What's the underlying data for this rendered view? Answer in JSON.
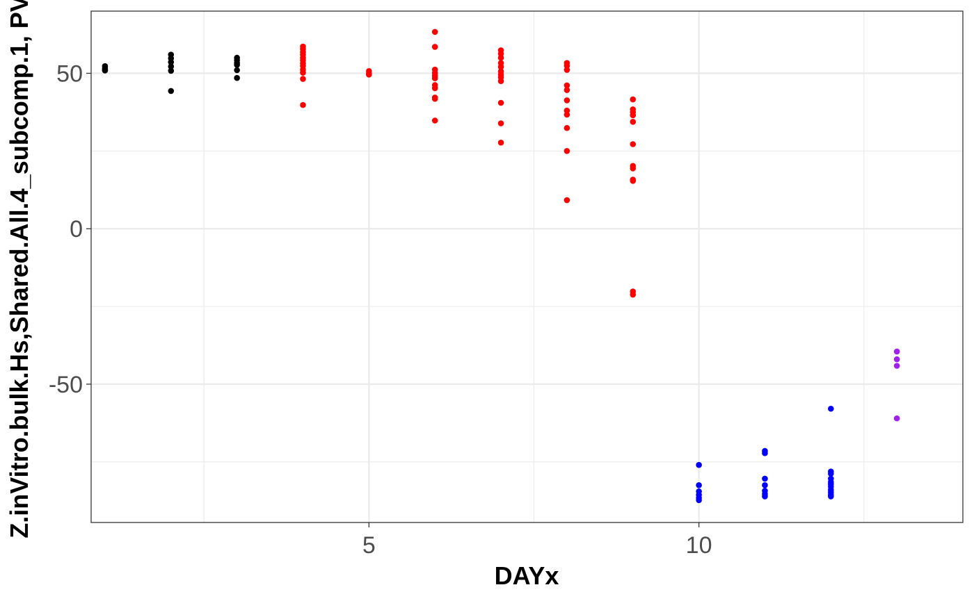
{
  "chart_data": {
    "type": "scatter",
    "title": "",
    "xlabel": "DAYx",
    "ylabel": "Z.inVitro.bulk.Hs,Shared.All.4_subcomp.1, PV",
    "xlim": [
      0.79,
      14.0
    ],
    "ylim": [
      -94.5,
      70
    ],
    "x_ticks": [
      5,
      10
    ],
    "x_tick_labels": [
      "5",
      "10"
    ],
    "y_ticks": [
      -50,
      0,
      50
    ],
    "y_tick_labels": [
      "-50",
      "0",
      "50"
    ],
    "grid": true,
    "legend": "none",
    "series": [
      {
        "color": "#000000",
        "points": [
          [
            1,
            52.3
          ],
          [
            1,
            51.6
          ],
          [
            1,
            51.1
          ],
          [
            1,
            50.9
          ],
          [
            2,
            56.0
          ],
          [
            2,
            54.8
          ],
          [
            2,
            53.6
          ],
          [
            2,
            52.2
          ],
          [
            2,
            50.8
          ],
          [
            2,
            44.3
          ],
          [
            3,
            55.0
          ],
          [
            3,
            54.2
          ],
          [
            3,
            53.3
          ],
          [
            3,
            52.7
          ],
          [
            3,
            51.0
          ],
          [
            3,
            48.5
          ]
        ]
      },
      {
        "color": "#ff0000",
        "points": [
          [
            4,
            58.6
          ],
          [
            4,
            57.8
          ],
          [
            4,
            56.8
          ],
          [
            4,
            56.0
          ],
          [
            4,
            55.0
          ],
          [
            4,
            54.2
          ],
          [
            4,
            53.2
          ],
          [
            4,
            52.4
          ],
          [
            4,
            51.2
          ],
          [
            4,
            50.2
          ],
          [
            4,
            48.2
          ],
          [
            4,
            39.8
          ],
          [
            5,
            50.7
          ],
          [
            5,
            50.0
          ],
          [
            5,
            49.6
          ],
          [
            6,
            63.3
          ],
          [
            6,
            58.5
          ],
          [
            6,
            51.2
          ],
          [
            6,
            50.1
          ],
          [
            6,
            49.2
          ],
          [
            6,
            48.4
          ],
          [
            6,
            46.2
          ],
          [
            6,
            45.2
          ],
          [
            6,
            42.2
          ],
          [
            6,
            41.8
          ],
          [
            6,
            34.8
          ],
          [
            7,
            57.4
          ],
          [
            7,
            56.3
          ],
          [
            7,
            55.0
          ],
          [
            7,
            53.3
          ],
          [
            7,
            52.1
          ],
          [
            7,
            50.6
          ],
          [
            7,
            49.6
          ],
          [
            7,
            48.7
          ],
          [
            7,
            47.5
          ],
          [
            7,
            40.5
          ],
          [
            7,
            33.9
          ],
          [
            7,
            27.7
          ],
          [
            8,
            53.3
          ],
          [
            8,
            52.4
          ],
          [
            8,
            51.1
          ],
          [
            8,
            46.1
          ],
          [
            8,
            44.6
          ],
          [
            8,
            41.3
          ],
          [
            8,
            38.0
          ],
          [
            8,
            36.7
          ],
          [
            8,
            32.4
          ],
          [
            8,
            25.0
          ],
          [
            8,
            9.2
          ],
          [
            9,
            41.6
          ],
          [
            9,
            38.4
          ],
          [
            9,
            37.5
          ],
          [
            9,
            36.5
          ],
          [
            9,
            34.4
          ],
          [
            9,
            27.2
          ],
          [
            9,
            20.2
          ],
          [
            9,
            19.4
          ],
          [
            9,
            15.8
          ],
          [
            9,
            15.4
          ],
          [
            9,
            -20.2
          ],
          [
            9,
            -21.2
          ]
        ]
      },
      {
        "color": "#0000ff",
        "points": [
          [
            10,
            -76.0
          ],
          [
            10,
            -82.5
          ],
          [
            10,
            -84.5
          ],
          [
            10,
            -85.6
          ],
          [
            10,
            -86.6
          ],
          [
            10,
            -87.3
          ],
          [
            11,
            -71.5
          ],
          [
            11,
            -72.2
          ],
          [
            11,
            -80.4
          ],
          [
            11,
            -82.5
          ],
          [
            11,
            -84.3
          ],
          [
            11,
            -85.3
          ],
          [
            11,
            -86.1
          ],
          [
            12,
            -57.9
          ],
          [
            12,
            -78.1
          ],
          [
            12,
            -78.8
          ],
          [
            12,
            -80.4
          ],
          [
            12,
            -81.5
          ],
          [
            12,
            -82.2
          ],
          [
            12,
            -83.0
          ],
          [
            12,
            -84.0
          ],
          [
            12,
            -84.8
          ],
          [
            12,
            -85.6
          ],
          [
            12,
            -86.1
          ]
        ]
      },
      {
        "color": "#a020f0",
        "points": [
          [
            13,
            -39.5
          ],
          [
            13,
            -42.0
          ],
          [
            13,
            -44.1
          ],
          [
            13,
            -61.0
          ]
        ]
      }
    ]
  }
}
